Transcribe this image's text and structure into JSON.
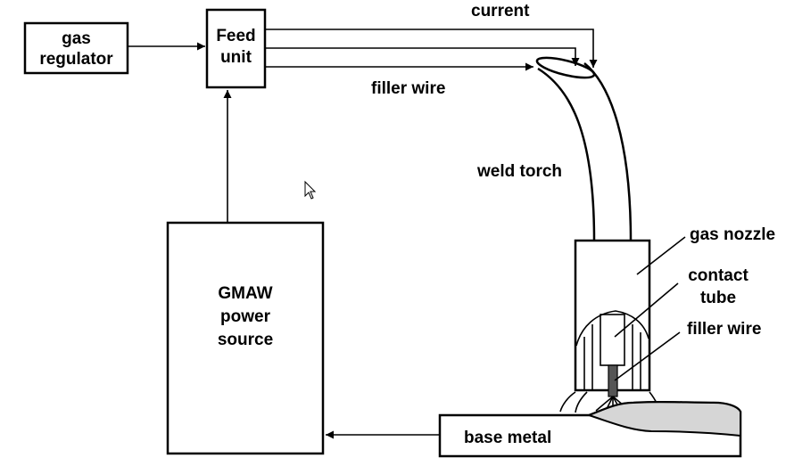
{
  "labels": {
    "gas_regulator": [
      "gas",
      "regulator"
    ],
    "feed_unit": [
      "Feed",
      "unit"
    ],
    "current": "current",
    "filler_wire_top": "filler wire",
    "weld_torch": "weld torch",
    "gas_nozzle": "gas nozzle",
    "contact_tube": [
      "contact",
      "tube"
    ],
    "filler_wire_tip": "filler wire",
    "power_source": [
      "GMAW",
      "power",
      "source"
    ],
    "base_metal": "base metal"
  },
  "colors": {
    "line": "#000000",
    "weld_bead": "#d6d6d6"
  },
  "cursor": "arrow-cursor-icon"
}
